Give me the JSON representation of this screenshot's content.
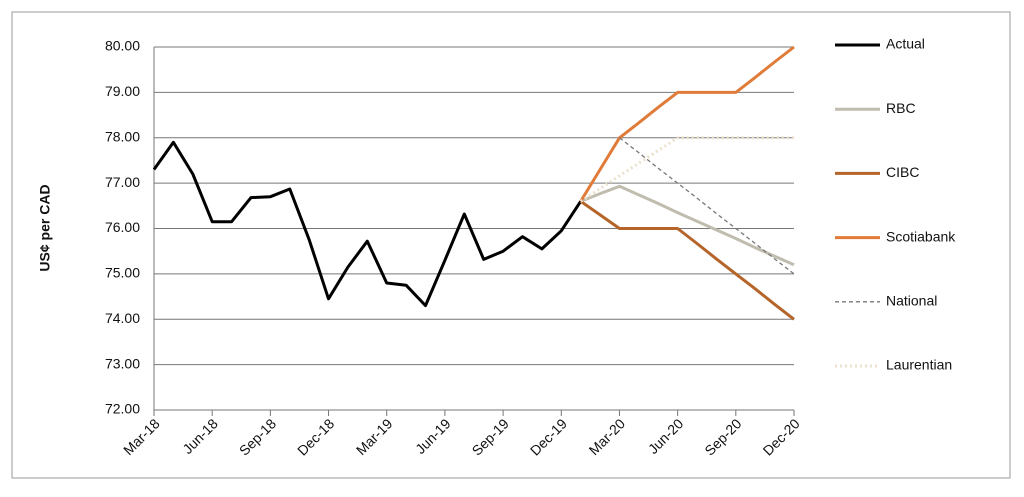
{
  "chart_data": {
    "type": "line",
    "y_label": "US¢ per CAD",
    "categories": [
      "Mar-18",
      null,
      null,
      "Jun-18",
      null,
      null,
      "Sep-18",
      null,
      null,
      "Dec-18",
      null,
      null,
      "Mar-19",
      null,
      null,
      "Jun-19",
      null,
      null,
      "Sep-19",
      null,
      null,
      "Dec-19",
      null,
      null,
      "Mar-20",
      null,
      null,
      "Jun-20",
      null,
      null,
      "Sep-20",
      null,
      null,
      "Dec-20"
    ],
    "series": [
      {
        "name": "Actual",
        "color": "#000000",
        "dash": "solid",
        "values": [
          77.3,
          77.9,
          77.2,
          76.15,
          76.15,
          76.68,
          76.7,
          76.87,
          75.75,
          74.45,
          75.15,
          75.72,
          74.8,
          74.75,
          74.3,
          75.3,
          76.32,
          75.32,
          75.5,
          75.82,
          75.55,
          75.95,
          76.6,
          null,
          null,
          null,
          null,
          null,
          null,
          null,
          null,
          null,
          null,
          null
        ]
      },
      {
        "name": "RBC",
        "color": "#c0bcae",
        "dash": "solid",
        "values": [
          null,
          null,
          null,
          null,
          null,
          null,
          null,
          null,
          null,
          null,
          null,
          null,
          null,
          null,
          null,
          null,
          null,
          null,
          null,
          null,
          null,
          null,
          76.6,
          76.77,
          76.93,
          76.74,
          76.55,
          76.35,
          76.16,
          75.97,
          75.78,
          75.58,
          75.39,
          75.2
        ]
      },
      {
        "name": "CIBC",
        "color": "#b5652a",
        "dash": "solid",
        "values": [
          null,
          null,
          null,
          null,
          null,
          null,
          null,
          null,
          null,
          null,
          null,
          null,
          null,
          null,
          null,
          null,
          null,
          null,
          null,
          null,
          null,
          null,
          76.6,
          76.3,
          76.0,
          76.0,
          76.0,
          76.0,
          75.67,
          75.33,
          75.0,
          74.67,
          74.33,
          74.0
        ]
      },
      {
        "name": "Scotiabank",
        "color": "#e07b39",
        "dash": "solid",
        "values": [
          null,
          null,
          null,
          null,
          null,
          null,
          null,
          null,
          null,
          null,
          null,
          null,
          null,
          null,
          null,
          null,
          null,
          null,
          null,
          null,
          null,
          null,
          76.6,
          77.3,
          78.0,
          78.33,
          78.67,
          79.0,
          79.0,
          79.0,
          79.0,
          79.33,
          79.67,
          80.0
        ]
      },
      {
        "name": "National",
        "color": "#777777",
        "dash": "dashed",
        "values": [
          null,
          null,
          null,
          null,
          null,
          null,
          null,
          null,
          null,
          null,
          null,
          null,
          null,
          null,
          null,
          null,
          null,
          null,
          null,
          null,
          null,
          null,
          null,
          null,
          78.0,
          77.67,
          77.33,
          77.0,
          76.67,
          76.33,
          76.0,
          75.67,
          75.33,
          75.0
        ]
      },
      {
        "name": "Laurentian",
        "color": "#ece2cc",
        "dash": "dotted",
        "values": [
          null,
          null,
          null,
          null,
          null,
          null,
          null,
          null,
          null,
          null,
          null,
          null,
          null,
          null,
          null,
          null,
          null,
          null,
          null,
          null,
          null,
          null,
          76.6,
          76.88,
          77.16,
          77.44,
          77.72,
          78.0,
          78.0,
          78.0,
          78.0,
          78.0,
          78.0,
          78.0
        ]
      }
    ],
    "ylim": [
      72,
      80
    ],
    "yticks": [
      {
        "value": 72,
        "label": "72.00"
      },
      {
        "value": 73,
        "label": "73.00"
      },
      {
        "value": 74,
        "label": "74.00"
      },
      {
        "value": 75,
        "label": "75.00"
      },
      {
        "value": 76,
        "label": "76.00"
      },
      {
        "value": 77,
        "label": "77.00"
      },
      {
        "value": 78,
        "label": "78.00"
      },
      {
        "value": 79,
        "label": "79.00"
      },
      {
        "value": 80,
        "label": "80.00"
      }
    ],
    "grid": true,
    "legend": "right"
  }
}
